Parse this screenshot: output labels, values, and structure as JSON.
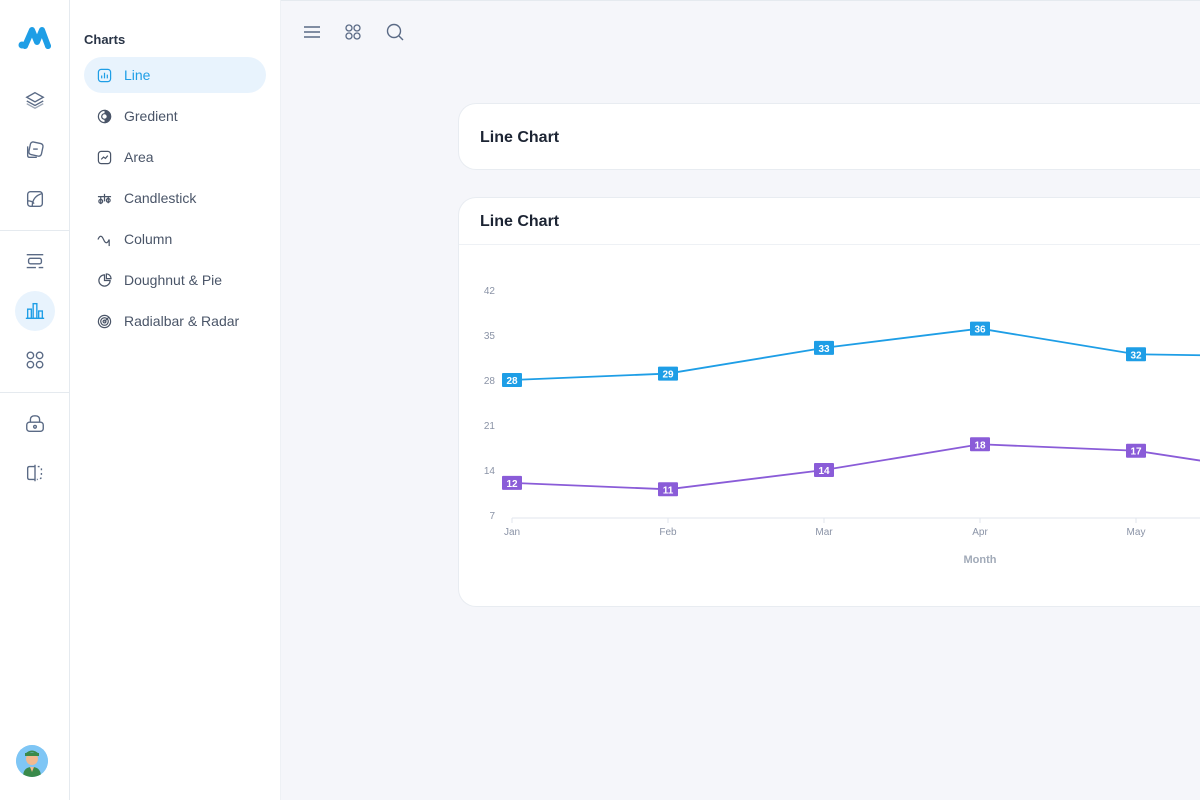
{
  "sidebar": {
    "heading": "Charts",
    "items": [
      {
        "label": "Line",
        "icon": "bar-chart-icon",
        "active": true
      },
      {
        "label": "Gredient",
        "icon": "gradient-circle-icon"
      },
      {
        "label": "Area",
        "icon": "area-chart-icon"
      },
      {
        "label": "Candlestick",
        "icon": "candlestick-icon"
      },
      {
        "label": "Column",
        "icon": "wave-icon"
      },
      {
        "label": "Doughnut & Pie",
        "icon": "pie-chart-icon"
      },
      {
        "label": "Radialbar & Radar",
        "icon": "radial-icon"
      }
    ]
  },
  "rail": {
    "icons": [
      "layers-icon",
      "sticker-icon",
      "leaf-icon",
      "layout-icon",
      "chart-icon",
      "apps-icon",
      "lock-icon",
      "split-icon"
    ],
    "active_icon": "chart-icon"
  },
  "topbar": {
    "icons": [
      "menu-icon",
      "apps-grid-icon",
      "search-icon"
    ]
  },
  "cards": {
    "header_title": "Line Chart",
    "chart_title": "Line Chart"
  },
  "colors": {
    "accent": "#1e9ee6",
    "series1": "#1e9ee6",
    "series2": "#8a5cd8"
  },
  "chart_data": {
    "type": "line",
    "categories": [
      "Jan",
      "Feb",
      "Mar",
      "Apr",
      "May"
    ],
    "series": [
      {
        "values": [
          28,
          29,
          33,
          36,
          32
        ],
        "color": "#1e9ee6"
      },
      {
        "values": [
          12,
          11,
          14,
          18,
          17
        ],
        "color": "#8a5cd8"
      }
    ],
    "yticks": [
      7,
      14,
      21,
      28,
      35,
      42
    ],
    "ylim": [
      7,
      42
    ],
    "xlabel": "Month",
    "ylabel": "",
    "grid": false,
    "data_labels": true
  }
}
